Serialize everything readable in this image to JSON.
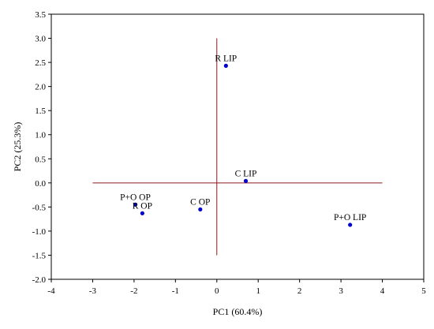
{
  "chart_data": {
    "type": "scatter",
    "xlabel": "PC1 (60.4%)",
    "ylabel": "PC2 (25.3%)",
    "xlim": [
      -4,
      5
    ],
    "ylim": [
      -2.0,
      3.5
    ],
    "x_ticks": [
      "-4",
      "-3",
      "-2",
      "-1",
      "0",
      "1",
      "2",
      "3",
      "4",
      "5"
    ],
    "y_ticks": [
      "-2.0",
      "-1.5",
      "-1.0",
      "-0.5",
      "0.0",
      "0.5",
      "1.0",
      "1.5",
      "2.0",
      "2.5",
      "3.0",
      "3.5"
    ],
    "grid": false,
    "reference_lines": {
      "horizontal": {
        "y": 0,
        "x_from": -3,
        "x_to": 4
      },
      "vertical": {
        "x": 0,
        "y_from": -1.5,
        "y_to": 3
      }
    },
    "point_color": "#0000cc",
    "line_color": "#8b1a1a",
    "points": [
      {
        "label": "R LIP",
        "x": 0.22,
        "y": 2.43
      },
      {
        "label": "C LIP",
        "x": 0.7,
        "y": 0.04
      },
      {
        "label": "P+O OP",
        "x": -1.97,
        "y": -0.45
      },
      {
        "label": "R OP",
        "x": -1.8,
        "y": -0.63
      },
      {
        "label": "C OP",
        "x": -0.4,
        "y": -0.55
      },
      {
        "label": "P+O LIP",
        "x": 3.22,
        "y": -0.87
      }
    ]
  }
}
